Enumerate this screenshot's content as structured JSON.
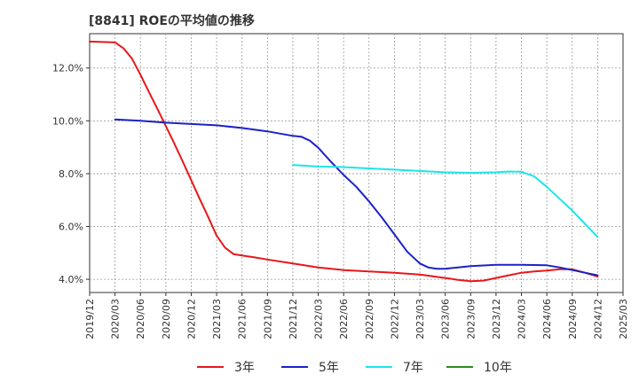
{
  "chart_data": {
    "type": "line",
    "title": "[8841]  ROEの平均値の推移",
    "xlabel": "",
    "ylabel": "",
    "ylim": [
      3.5,
      13.3
    ],
    "y_ticks": [
      4.0,
      6.0,
      8.0,
      10.0,
      12.0
    ],
    "y_tick_labels": [
      "4.0%",
      "6.0%",
      "8.0%",
      "10.0%",
      "12.0%"
    ],
    "x_categories": [
      "2019/12",
      "2020/03",
      "2020/06",
      "2020/09",
      "2020/12",
      "2021/03",
      "2021/06",
      "2021/09",
      "2021/12",
      "2022/03",
      "2022/06",
      "2022/09",
      "2022/12",
      "2023/03",
      "2023/06",
      "2023/09",
      "2023/12",
      "2024/03",
      "2024/06",
      "2024/09",
      "2024/12",
      "2025/03"
    ],
    "grid": true,
    "legend_position": "bottom",
    "series": [
      {
        "name": "3年",
        "color": "#e8171b",
        "x": [
          0,
          0.67,
          1,
          1.33,
          1.67,
          2,
          2.33,
          2.67,
          3,
          3.33,
          3.67,
          4,
          4.33,
          4.67,
          5,
          5.33,
          5.67,
          6,
          6.5,
          7,
          8,
          9,
          10,
          11,
          12,
          13,
          14,
          14.5,
          15,
          15.5,
          16,
          16.5,
          17,
          17.5,
          18,
          18.5,
          19,
          19.5,
          20
        ],
        "values": [
          13.0,
          12.98,
          12.97,
          12.75,
          12.35,
          11.75,
          11.1,
          10.45,
          9.8,
          9.15,
          8.45,
          7.75,
          7.05,
          6.35,
          5.65,
          5.2,
          4.95,
          4.9,
          4.83,
          4.75,
          4.6,
          4.45,
          4.35,
          4.3,
          4.25,
          4.18,
          4.05,
          3.98,
          3.93,
          3.95,
          4.05,
          4.15,
          4.25,
          4.3,
          4.33,
          4.38,
          4.38,
          4.25,
          4.1
        ]
      },
      {
        "name": "5年",
        "color": "#1c22c7",
        "x": [
          1,
          2,
          3,
          4,
          5,
          6,
          7,
          8,
          8.33,
          8.67,
          9,
          9.5,
          10,
          10.5,
          11,
          11.5,
          12,
          12.5,
          13,
          13.33,
          13.67,
          14,
          14.5,
          15,
          16,
          17,
          18,
          18.5,
          19,
          19.5,
          20
        ],
        "values": [
          10.05,
          10.0,
          9.93,
          9.88,
          9.83,
          9.73,
          9.6,
          9.43,
          9.4,
          9.25,
          8.98,
          8.45,
          7.95,
          7.5,
          6.95,
          6.35,
          5.7,
          5.05,
          4.6,
          4.45,
          4.4,
          4.4,
          4.45,
          4.5,
          4.55,
          4.55,
          4.53,
          4.45,
          4.35,
          4.25,
          4.15
        ]
      },
      {
        "name": "7年",
        "color": "#1ce5ea",
        "x": [
          8,
          9,
          10,
          11,
          12,
          13,
          14,
          15,
          16,
          16.5,
          17,
          17.5,
          18,
          18.5,
          19,
          19.5,
          20
        ],
        "values": [
          8.33,
          8.27,
          8.25,
          8.2,
          8.15,
          8.1,
          8.05,
          8.03,
          8.05,
          8.08,
          8.07,
          7.9,
          7.5,
          7.05,
          6.6,
          6.1,
          5.6
        ]
      },
      {
        "name": "10年",
        "color": "#2c8a1f",
        "x": [],
        "values": []
      }
    ]
  }
}
